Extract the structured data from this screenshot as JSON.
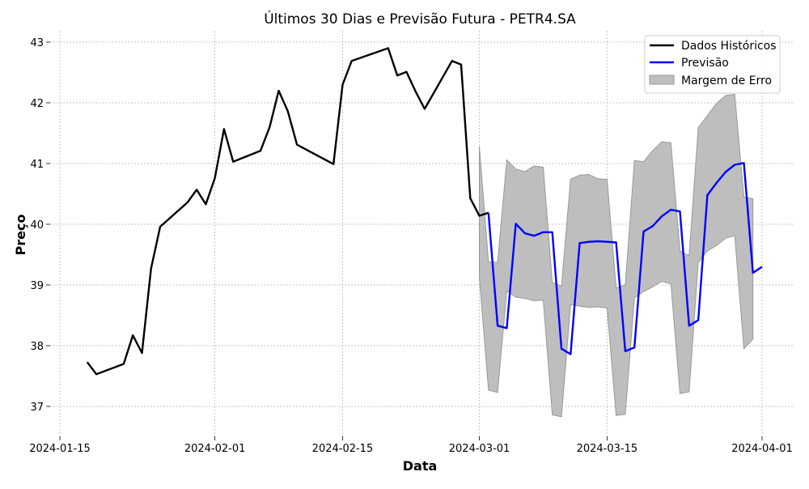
{
  "chart_data": {
    "type": "line",
    "title": "Últimos 30 Dias e Previsão Futura - PETR4.SA",
    "xlabel": "Data",
    "ylabel": "Preço",
    "xlim": [
      "2024-01-15",
      "2024-04-01"
    ],
    "ylim": [
      36.5,
      43.2
    ],
    "x_ticks": [
      "2024-01-15",
      "2024-02-01",
      "2024-02-15",
      "2024-03-01",
      "2024-03-15",
      "2024-04-01"
    ],
    "y_ticks": [
      37,
      38,
      39,
      40,
      41,
      42,
      43
    ],
    "grid": true,
    "legend_position": "top-right",
    "series": [
      {
        "name": "Dados Históricos",
        "kind": "line",
        "color": "#000000",
        "points": [
          [
            "2024-01-18",
            37.73
          ],
          [
            "2024-01-19",
            37.53
          ],
          [
            "2024-01-22",
            37.7
          ],
          [
            "2024-01-23",
            38.17
          ],
          [
            "2024-01-24",
            37.88
          ],
          [
            "2024-01-25",
            39.27
          ],
          [
            "2024-01-26",
            39.96
          ],
          [
            "2024-01-29",
            40.36
          ],
          [
            "2024-01-30",
            40.57
          ],
          [
            "2024-01-31",
            40.33
          ],
          [
            "2024-02-01",
            40.76
          ],
          [
            "2024-02-02",
            41.57
          ],
          [
            "2024-02-03",
            41.03
          ],
          [
            "2024-02-06",
            41.21
          ],
          [
            "2024-02-07",
            41.6
          ],
          [
            "2024-02-08",
            42.2
          ],
          [
            "2024-02-09",
            41.86
          ],
          [
            "2024-02-10",
            41.31
          ],
          [
            "2024-02-14",
            40.99
          ],
          [
            "2024-02-15",
            42.3
          ],
          [
            "2024-02-16",
            42.69
          ],
          [
            "2024-02-20",
            42.9
          ],
          [
            "2024-02-21",
            42.45
          ],
          [
            "2024-02-22",
            42.51
          ],
          [
            "2024-02-23",
            42.19
          ],
          [
            "2024-02-24",
            41.9
          ],
          [
            "2024-02-27",
            42.69
          ],
          [
            "2024-02-28",
            42.63
          ],
          [
            "2024-02-29",
            40.43
          ],
          [
            "2024-03-01",
            40.14
          ],
          [
            "2024-03-02",
            40.19
          ]
        ]
      },
      {
        "name": "Previsão",
        "kind": "line",
        "color": "#0000ff",
        "points": [
          [
            "2024-03-02",
            40.19
          ],
          [
            "2024-03-03",
            38.33
          ],
          [
            "2024-03-04",
            38.29
          ],
          [
            "2024-03-05",
            40.01
          ],
          [
            "2024-03-06",
            39.85
          ],
          [
            "2024-03-07",
            39.81
          ],
          [
            "2024-03-08",
            39.87
          ],
          [
            "2024-03-09",
            39.87
          ],
          [
            "2024-03-10",
            37.95
          ],
          [
            "2024-03-11",
            37.86
          ],
          [
            "2024-03-12",
            39.69
          ],
          [
            "2024-03-13",
            39.71
          ],
          [
            "2024-03-14",
            39.72
          ],
          [
            "2024-03-15",
            39.71
          ],
          [
            "2024-03-16",
            39.7
          ],
          [
            "2024-03-17",
            37.91
          ],
          [
            "2024-03-18",
            37.97
          ],
          [
            "2024-03-19",
            39.88
          ],
          [
            "2024-03-20",
            39.97
          ],
          [
            "2024-03-21",
            40.13
          ],
          [
            "2024-03-22",
            40.24
          ],
          [
            "2024-03-23",
            40.21
          ],
          [
            "2024-03-24",
            38.33
          ],
          [
            "2024-03-25",
            38.42
          ],
          [
            "2024-03-26",
            40.48
          ],
          [
            "2024-03-27",
            40.68
          ],
          [
            "2024-03-28",
            40.86
          ],
          [
            "2024-03-29",
            40.98
          ],
          [
            "2024-03-30",
            41.01
          ],
          [
            "2024-03-31",
            39.2
          ],
          [
            "2024-04-01",
            39.3
          ]
        ]
      }
    ],
    "band": {
      "name": "Margem de Erro",
      "color": "#bebebe",
      "edge_color": "#999999",
      "dates": [
        "2024-03-01",
        "2024-03-02",
        "2024-03-03",
        "2024-03-04",
        "2024-03-05",
        "2024-03-06",
        "2024-03-07",
        "2024-03-08",
        "2024-03-09",
        "2024-03-10",
        "2024-03-11",
        "2024-03-12",
        "2024-03-13",
        "2024-03-14",
        "2024-03-15",
        "2024-03-16",
        "2024-03-17",
        "2024-03-18",
        "2024-03-19",
        "2024-03-20",
        "2024-03-21",
        "2024-03-22",
        "2024-03-23",
        "2024-03-24",
        "2024-03-25",
        "2024-03-26",
        "2024-03-27",
        "2024-03-28",
        "2024-03-29",
        "2024-03-30",
        "2024-03-31"
      ],
      "upper": [
        41.28,
        39.38,
        39.37,
        41.06,
        40.91,
        40.87,
        40.96,
        40.94,
        39.04,
        38.98,
        40.74,
        40.81,
        40.82,
        40.75,
        40.74,
        38.95,
        39.0,
        41.05,
        41.03,
        41.21,
        41.36,
        41.34,
        39.56,
        39.48,
        41.59,
        41.79,
        41.99,
        42.12,
        42.14,
        40.45,
        40.42
      ],
      "lower": [
        39.13,
        37.27,
        37.23,
        38.9,
        38.8,
        38.78,
        38.74,
        38.75,
        36.86,
        36.83,
        38.68,
        38.65,
        38.63,
        38.64,
        38.62,
        36.85,
        36.87,
        38.79,
        38.89,
        38.97,
        39.06,
        39.02,
        37.21,
        37.24,
        39.37,
        39.56,
        39.65,
        39.77,
        39.81,
        37.95,
        38.11
      ]
    }
  }
}
